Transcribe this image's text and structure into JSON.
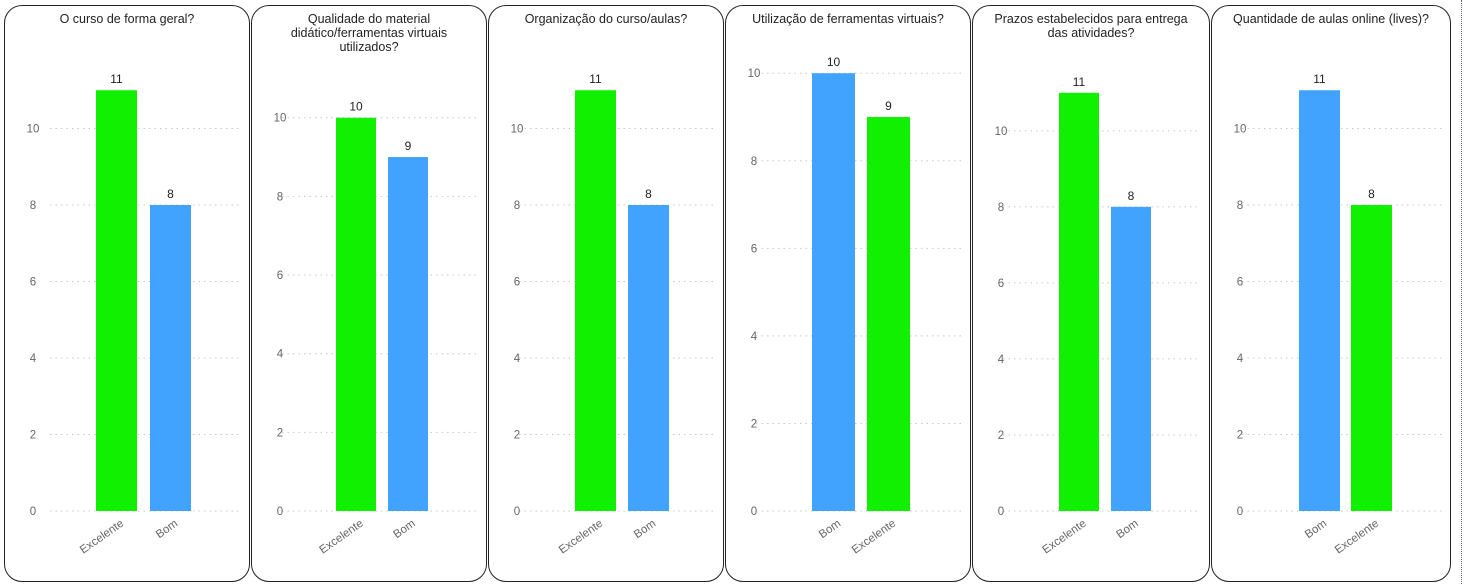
{
  "colors": {
    "excelente": "#10f000",
    "bom": "#42a3ff"
  },
  "chart_data": [
    {
      "type": "bar",
      "title": "O curso de forma geral?",
      "categories": [
        "Excelente",
        "Bom"
      ],
      "values": [
        11,
        8
      ],
      "bar_colors": [
        "#10f000",
        "#42a3ff"
      ],
      "yticks": [
        0,
        2,
        4,
        6,
        8,
        10
      ],
      "ylim": [
        0,
        11.45
      ],
      "grid": true
    },
    {
      "type": "bar",
      "title": "Qualidade do material didático/ferramentas virtuais utilizados?",
      "categories": [
        "Excelente",
        "Bom"
      ],
      "values": [
        10,
        9
      ],
      "bar_colors": [
        "#10f000",
        "#42a3ff"
      ],
      "yticks": [
        0,
        2,
        4,
        6,
        8,
        10
      ],
      "ylim": [
        0,
        10.4
      ],
      "grid": true
    },
    {
      "type": "bar",
      "title": "Organização do curso/aulas?",
      "categories": [
        "Excelente",
        "Bom"
      ],
      "values": [
        11,
        8
      ],
      "bar_colors": [
        "#10f000",
        "#42a3ff"
      ],
      "yticks": [
        0,
        2,
        4,
        6,
        8,
        10
      ],
      "ylim": [
        0,
        11.45
      ],
      "grid": true
    },
    {
      "type": "bar",
      "title": "Utilização de ferramentas virtuais?",
      "categories": [
        "Bom",
        "Excelente"
      ],
      "values": [
        10,
        9
      ],
      "bar_colors": [
        "#42a3ff",
        "#10f000"
      ],
      "yticks": [
        0,
        2,
        4,
        6,
        8,
        10
      ],
      "ylim": [
        0,
        10.05
      ],
      "grid": true
    },
    {
      "type": "bar",
      "title": "Prazos estabelecidos para entrega das atividades?",
      "categories": [
        "Excelente",
        "Bom"
      ],
      "values": [
        11,
        8
      ],
      "bar_colors": [
        "#10f000",
        "#42a3ff"
      ],
      "yticks": [
        0,
        2,
        4,
        6,
        8,
        10
      ],
      "ylim": [
        0,
        11.1
      ],
      "grid": true
    },
    {
      "type": "bar",
      "title": "Quantidade de aulas online (lives)?",
      "categories": [
        "Bom",
        "Excelente"
      ],
      "values": [
        11,
        8
      ],
      "bar_colors": [
        "#42a3ff",
        "#10f000"
      ],
      "yticks": [
        0,
        2,
        4,
        6,
        8,
        10
      ],
      "ylim": [
        0,
        11.45
      ],
      "grid": true
    }
  ]
}
